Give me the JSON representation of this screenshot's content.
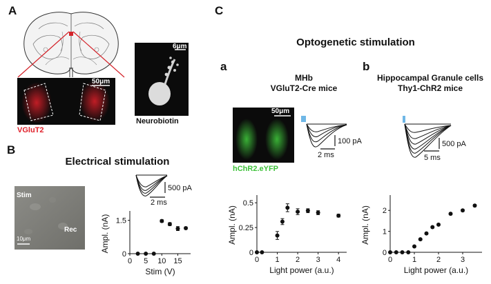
{
  "panel_labels": {
    "A": "A",
    "B": "B",
    "C": "C",
    "a": "a",
    "b": "b"
  },
  "panel_A": {
    "vglut2_label": "VGluT2",
    "vglut2_scale": "50μm",
    "neurobiotin_label": "Neurobiotin",
    "neurobiotin_scale": "6μm",
    "colors": {
      "vglut2": "#e0202a",
      "fluor_bg": "#111111"
    }
  },
  "panel_B": {
    "title": "Electrical stimulation",
    "stim_label": "Stim",
    "rec_label": "Rec",
    "image_scale": "10μm",
    "trace_scale_y": "500 pA",
    "trace_scale_x": "2 ms"
  },
  "panel_C": {
    "title": "Optogenetic stimulation",
    "a_title_line1": "MHb",
    "a_title_line2": "VGluT2-Cre mice",
    "a_image_scale": "50μm",
    "a_image_label": "hChR2.eYFP",
    "a_trace_scale_y": "100 pA",
    "a_trace_scale_x": "2 ms",
    "b_title_line1": "Hippocampal Granule cells",
    "b_title_line2": "Thy1-ChR2 mice",
    "b_trace_scale_y": "500 pA",
    "b_trace_scale_x": "5 ms",
    "colors": {
      "light_pulse": "#6fb7e6",
      "eyfp": "#3ec23a"
    }
  },
  "chart_data": [
    {
      "id": "chartB",
      "type": "scatter",
      "title": "",
      "xlabel": "Stim (V)",
      "ylabel": "Ampl. (nA)",
      "xlim": [
        0,
        19
      ],
      "ylim": [
        0,
        1.8
      ],
      "xticks": [
        0,
        5,
        10,
        15
      ],
      "yticks": [
        0,
        1.5
      ],
      "x": [
        2.5,
        5,
        7.5,
        10,
        12.5,
        15,
        17.5
      ],
      "y": [
        0.0,
        0.0,
        0.0,
        1.47,
        1.33,
        1.13,
        1.15
      ],
      "err": [
        0,
        0,
        0,
        0.06,
        0.07,
        0.09,
        0.05
      ]
    },
    {
      "id": "chartCa",
      "type": "scatter",
      "title": "",
      "xlabel": "Light power (a.u.)",
      "ylabel": "Ampl. (nA)",
      "xlim": [
        0,
        4.4
      ],
      "ylim": [
        0,
        0.55
      ],
      "xticks": [
        0,
        1,
        2,
        3,
        4
      ],
      "yticks": [
        0,
        0.25,
        0.5
      ],
      "ytick_labels": [
        "0",
        "0.25",
        "0.5"
      ],
      "x": [
        0,
        0.25,
        1.0,
        1.25,
        1.5,
        2.0,
        2.5,
        3.0,
        4.0
      ],
      "y": [
        0.0,
        0.0,
        0.17,
        0.31,
        0.45,
        0.41,
        0.42,
        0.4,
        0.37
      ],
      "err": [
        0,
        0,
        0.04,
        0.03,
        0.04,
        0.03,
        0.02,
        0.02,
        0.015
      ]
    },
    {
      "id": "chartCb",
      "type": "scatter",
      "title": "",
      "xlabel": "Light power (a.u.)",
      "ylabel": "Ampl. (nA)",
      "xlim": [
        0,
        3.8
      ],
      "ylim": [
        0,
        2.6
      ],
      "xticks": [
        0,
        1,
        2,
        3
      ],
      "yticks": [
        0,
        1,
        2
      ],
      "x": [
        0,
        0.25,
        0.5,
        0.75,
        1.0,
        1.25,
        1.5,
        1.75,
        2.0,
        2.5,
        3.0,
        3.5
      ],
      "y": [
        0.0,
        0.0,
        0.0,
        0.0,
        0.28,
        0.62,
        0.9,
        1.2,
        1.32,
        1.84,
        2.0,
        2.23
      ],
      "err": [
        0,
        0,
        0,
        0,
        0.03,
        0.04,
        0.04,
        0.04,
        0.04,
        0.05,
        0.05,
        0.05
      ]
    }
  ]
}
